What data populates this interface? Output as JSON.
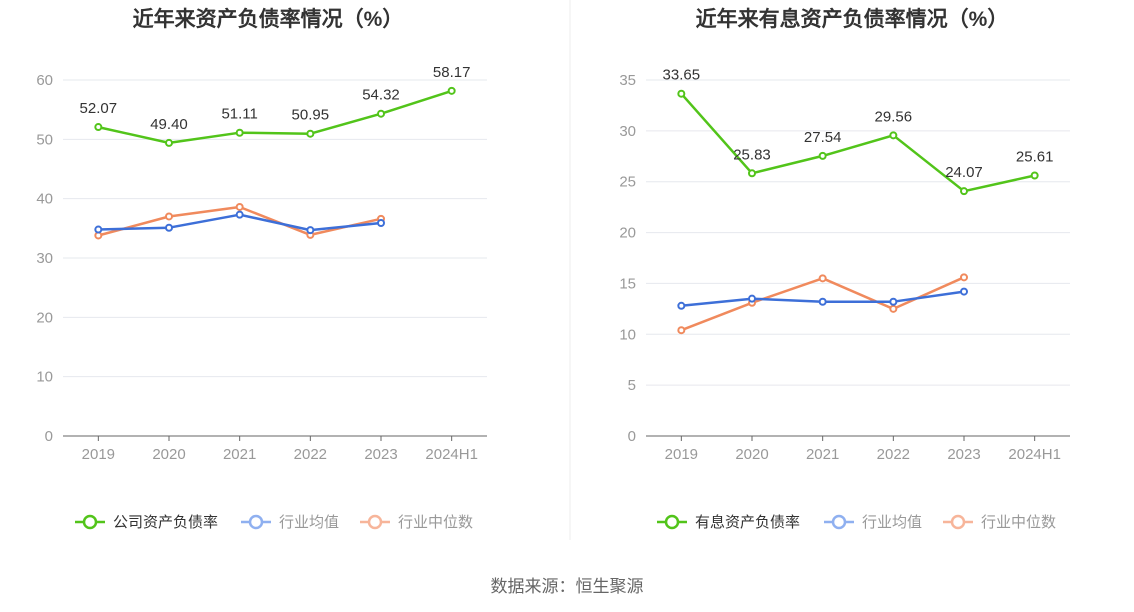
{
  "source_text": "数据来源：恒生聚源",
  "chart_data": [
    {
      "type": "line",
      "title": "近年来资产负债率情况（%）",
      "categories": [
        "2019",
        "2020",
        "2021",
        "2022",
        "2023",
        "2024H1"
      ],
      "ylim": [
        0,
        60
      ],
      "yticks": [
        0,
        10,
        20,
        30,
        40,
        50,
        60
      ],
      "grid": true,
      "legend_position": "bottom",
      "series": [
        {
          "name": "公司资产负债率",
          "color": "#52c41a",
          "labels": true,
          "values": [
            52.07,
            49.4,
            51.11,
            50.95,
            54.32,
            58.17
          ]
        },
        {
          "name": "行业均值",
          "color": "#3d6fd8",
          "legend_color": "#8fb0f0",
          "labels": false,
          "values": [
            34.8,
            35.1,
            37.3,
            34.7,
            35.9,
            null
          ]
        },
        {
          "name": "行业中位数",
          "color": "#f08a5d",
          "legend_color": "#f7b59a",
          "labels": false,
          "values": [
            33.8,
            37.0,
            38.6,
            33.9,
            36.6,
            null
          ]
        }
      ]
    },
    {
      "type": "line",
      "title": "近年来有息资产负债率情况（%）",
      "categories": [
        "2019",
        "2020",
        "2021",
        "2022",
        "2023",
        "2024H1"
      ],
      "ylim": [
        0,
        35
      ],
      "yticks": [
        0,
        5,
        10,
        15,
        20,
        25,
        30,
        35
      ],
      "grid": true,
      "legend_position": "bottom",
      "series": [
        {
          "name": "有息资产负债率",
          "color": "#52c41a",
          "labels": true,
          "values": [
            33.65,
            25.83,
            27.54,
            29.56,
            24.07,
            25.61
          ]
        },
        {
          "name": "行业均值",
          "color": "#3d6fd8",
          "legend_color": "#8fb0f0",
          "labels": false,
          "values": [
            12.8,
            13.5,
            13.2,
            13.2,
            14.2,
            null
          ]
        },
        {
          "name": "行业中位数",
          "color": "#f08a5d",
          "legend_color": "#f7b59a",
          "labels": false,
          "values": [
            10.4,
            13.1,
            15.5,
            12.5,
            15.6,
            null
          ]
        }
      ]
    }
  ]
}
